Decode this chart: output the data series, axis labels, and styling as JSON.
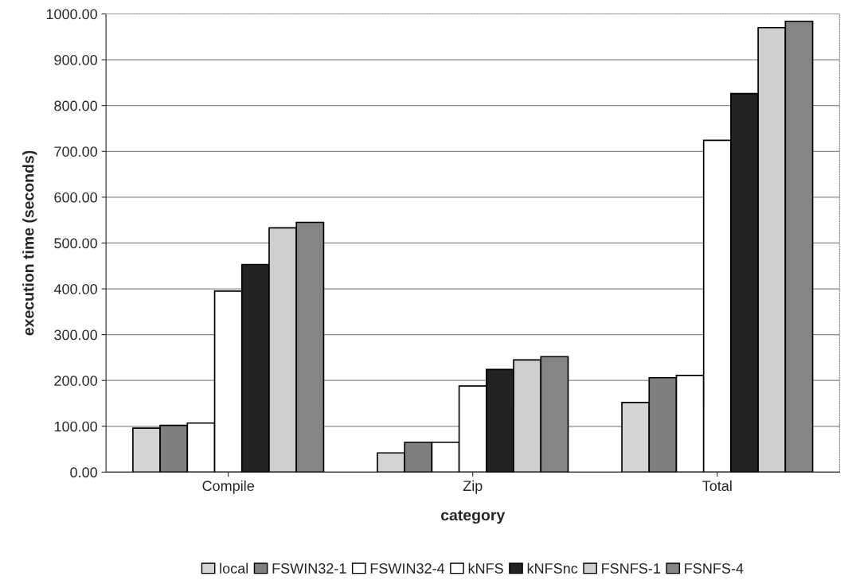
{
  "chart_data": {
    "type": "bar",
    "xlabel": "category",
    "ylabel": "execution time (seconds)",
    "categories": [
      "Compile",
      "Zip",
      "Total"
    ],
    "series": [
      {
        "name": "local",
        "color": "#d4d4d4",
        "values": [
          96,
          42,
          152
        ]
      },
      {
        "name": "FSWIN32-1",
        "color": "#7f7f7f",
        "values": [
          102,
          65,
          206
        ]
      },
      {
        "name": "FSWIN32-4",
        "color": "#ffffff",
        "values": [
          107,
          65,
          211
        ]
      },
      {
        "name": "kNFS",
        "color": "#ffffff",
        "values": [
          395,
          188,
          724
        ]
      },
      {
        "name": "kNFSnc",
        "color": "#222222",
        "values": [
          453,
          224,
          826
        ]
      },
      {
        "name": "FSNFS-1",
        "color": "#cfcfcf",
        "values": [
          533,
          245,
          970
        ]
      },
      {
        "name": "FSNFS-4",
        "color": "#858585",
        "values": [
          545,
          252,
          984
        ]
      }
    ],
    "ylim": [
      0,
      1000
    ],
    "yticks": [
      {
        "value": 0,
        "label": "0.00"
      },
      {
        "value": 100,
        "label": "100.00"
      },
      {
        "value": 200,
        "label": "200.00"
      },
      {
        "value": 300,
        "label": "300.00"
      },
      {
        "value": 400,
        "label": "400.00"
      },
      {
        "value": 500,
        "label": "500.00"
      },
      {
        "value": 600,
        "label": "600.00"
      },
      {
        "value": 700,
        "label": "700.00"
      },
      {
        "value": 800,
        "label": "800.00"
      },
      {
        "value": 900,
        "label": "900.00"
      },
      {
        "value": 1000,
        "label": "1000.00"
      }
    ],
    "grid": "y",
    "legend": "bottom"
  }
}
